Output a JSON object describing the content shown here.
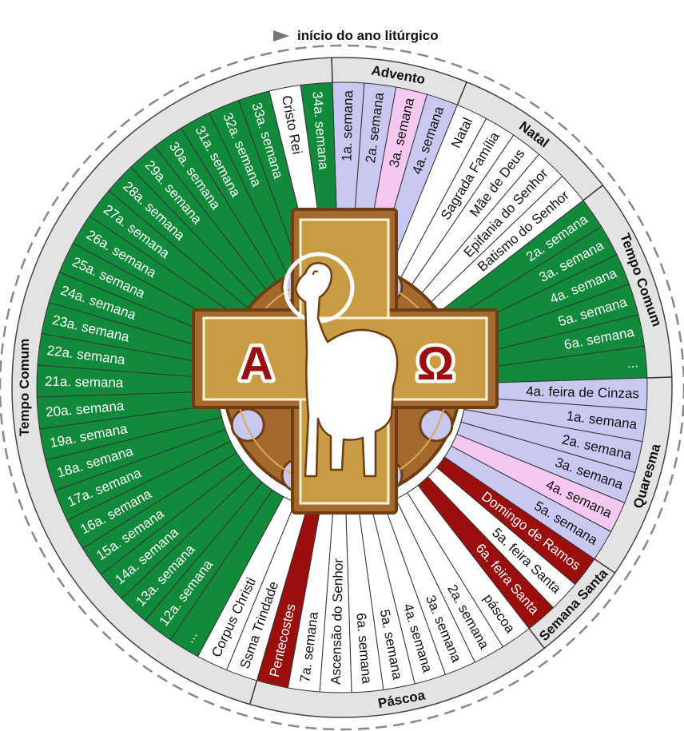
{
  "title": "início do ano litúrgico",
  "colors": {
    "ordinary": "#118a3c",
    "advent_lent": "#c9c8f0",
    "rose": "#f4c8f0",
    "white": "#ffffff",
    "red": "#9c0e0e",
    "ring": "#e3e3e3",
    "bronze": "#a46a2d",
    "bronze_dark": "#6e3d14",
    "gold": "#c99b44",
    "gold_light": "#d9ad55"
  },
  "seasons": [
    {
      "id": "advento",
      "label": "Advento"
    },
    {
      "id": "natal",
      "label": "Natal"
    },
    {
      "id": "tempo-comum-1",
      "label": "Tempo Comum"
    },
    {
      "id": "quaresma",
      "label": "Quaresma"
    },
    {
      "id": "semana-santa",
      "label": "Semana Santa"
    },
    {
      "id": "pascoa",
      "label": "Páscoa"
    },
    {
      "id": "tempo-comum-2",
      "label": "Tempo Comum"
    }
  ],
  "segments": [
    {
      "label": "1a. semana",
      "color": "advent_lent"
    },
    {
      "label": "2a. semana",
      "color": "advent_lent"
    },
    {
      "label": "3a. semana",
      "color": "rose"
    },
    {
      "label": "4a. semana",
      "color": "advent_lent"
    },
    {
      "label": "Natal",
      "color": "white"
    },
    {
      "label": "Sagrada Família",
      "color": "white"
    },
    {
      "label": "Mãe de Deus",
      "color": "white"
    },
    {
      "label": "Epifania do Senhor",
      "color": "white"
    },
    {
      "label": "Batismo do Senhor",
      "color": "white"
    },
    {
      "label": "2a. semana",
      "color": "ordinary"
    },
    {
      "label": "3a. semana",
      "color": "ordinary"
    },
    {
      "label": "4a. semana",
      "color": "ordinary"
    },
    {
      "label": "5a. semana",
      "color": "ordinary"
    },
    {
      "label": "6a. semana",
      "color": "ordinary"
    },
    {
      "label": "...",
      "color": "ordinary"
    },
    {
      "label": "4a. feira de Cinzas",
      "color": "advent_lent"
    },
    {
      "label": "1a. semana",
      "color": "advent_lent"
    },
    {
      "label": "2a. semana",
      "color": "advent_lent"
    },
    {
      "label": "3a. semana",
      "color": "advent_lent"
    },
    {
      "label": "4a. semana",
      "color": "rose"
    },
    {
      "label": "5a. semana",
      "color": "advent_lent"
    },
    {
      "label": "Domingo de Ramos",
      "color": "red"
    },
    {
      "label": "5a. feira Santa",
      "color": "white"
    },
    {
      "label": "6a. feira Santa",
      "color": "red"
    },
    {
      "label": "páscoa",
      "color": "white"
    },
    {
      "label": "2a. semana",
      "color": "white"
    },
    {
      "label": "3a. semana",
      "color": "white"
    },
    {
      "label": "4a. semana",
      "color": "white"
    },
    {
      "label": "5a. semana",
      "color": "white"
    },
    {
      "label": "6a. semana",
      "color": "white"
    },
    {
      "label": "Ascensão do Senhor",
      "color": "white"
    },
    {
      "label": "7a. semana",
      "color": "white"
    },
    {
      "label": "Pentecostes",
      "color": "red"
    },
    {
      "label": "Ssma Trindade",
      "color": "white"
    },
    {
      "label": "Corpus Christi",
      "color": "white"
    },
    {
      "label": "...",
      "color": "ordinary"
    },
    {
      "label": "12a. semana",
      "color": "ordinary"
    },
    {
      "label": "13a. semana",
      "color": "ordinary"
    },
    {
      "label": "14a. semana",
      "color": "ordinary"
    },
    {
      "label": "15a. semana",
      "color": "ordinary"
    },
    {
      "label": "16a. semana",
      "color": "ordinary"
    },
    {
      "label": "17a. semana",
      "color": "ordinary"
    },
    {
      "label": "18a. semana",
      "color": "ordinary"
    },
    {
      "label": "19a. semana",
      "color": "ordinary"
    },
    {
      "label": "20a. semana",
      "color": "ordinary"
    },
    {
      "label": "21a. semana",
      "color": "ordinary"
    },
    {
      "label": "22a. semana",
      "color": "ordinary"
    },
    {
      "label": "23a. semana",
      "color": "ordinary"
    },
    {
      "label": "24a. semana",
      "color": "ordinary"
    },
    {
      "label": "25a. semana",
      "color": "ordinary"
    },
    {
      "label": "26a. semana",
      "color": "ordinary"
    },
    {
      "label": "27a. semana",
      "color": "ordinary"
    },
    {
      "label": "28a. semana",
      "color": "ordinary"
    },
    {
      "label": "29a. semana",
      "color": "ordinary"
    },
    {
      "label": "30a. semana",
      "color": "ordinary"
    },
    {
      "label": "31a. semana",
      "color": "ordinary"
    },
    {
      "label": "32a. semana",
      "color": "ordinary"
    },
    {
      "label": "33a. semana",
      "color": "ordinary"
    },
    {
      "label": "Cristo Rei",
      "color": "white"
    },
    {
      "label": "34a. semana",
      "color": "ordinary"
    }
  ],
  "center": {
    "alpha": "Α",
    "omega": "Ω"
  }
}
